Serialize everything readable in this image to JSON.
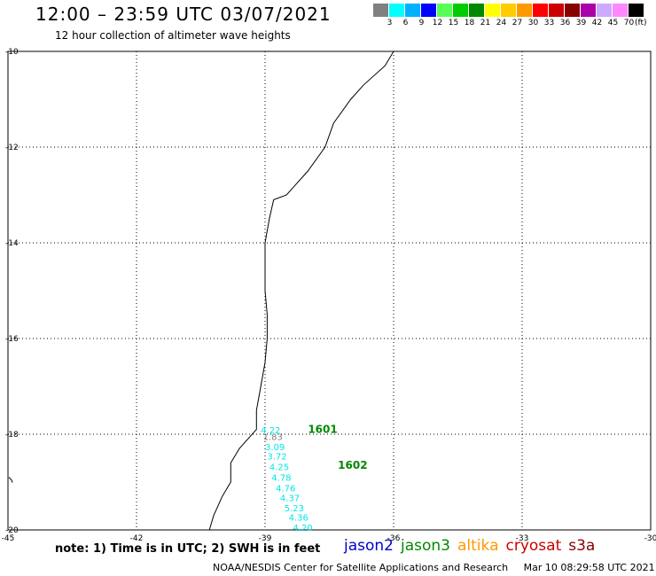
{
  "header": {
    "title": "12:00 – 23:59 UTC 03/07/2021",
    "subtitle": "12 hour collection of altimeter wave heights"
  },
  "color_scale": {
    "colors": [
      "#808080",
      "#00ffff",
      "#00b0ff",
      "#0000ff",
      "#55ff55",
      "#00cc00",
      "#008800",
      "#ffff00",
      "#ffcc00",
      "#ff9900",
      "#ff0000",
      "#cc0000",
      "#880000",
      "#aa00aa",
      "#ccaaff",
      "#ff88ff",
      "#000000"
    ],
    "ticks": [
      "3",
      "6",
      "9",
      "12",
      "15",
      "18",
      "21",
      "24",
      "27",
      "30",
      "33",
      "36",
      "39",
      "42",
      "45",
      "70"
    ],
    "unit": "(ft)"
  },
  "map": {
    "lon_range": [
      -45,
      -30
    ],
    "lat_range": [
      -20,
      -10
    ],
    "lon_labels": [
      "-45",
      "-42",
      "-39",
      "-36",
      "-33",
      "-30"
    ],
    "lat_labels": [
      "-10",
      "-12",
      "-14",
      "-16",
      "-18",
      "-20"
    ],
    "grid": "dotted",
    "coastline": [
      [
        -36.0,
        -10.0
      ],
      [
        -36.2,
        -10.3
      ],
      [
        -36.7,
        -10.7
      ],
      [
        -37.0,
        -11.0
      ],
      [
        -37.4,
        -11.5
      ],
      [
        -37.6,
        -12.0
      ],
      [
        -38.0,
        -12.5
      ],
      [
        -38.3,
        -12.8
      ],
      [
        -38.5,
        -13.0
      ],
      [
        -38.8,
        -13.1
      ],
      [
        -38.9,
        -13.5
      ],
      [
        -39.0,
        -14.0
      ],
      [
        -39.0,
        -14.3
      ],
      [
        -39.0,
        -15.0
      ],
      [
        -38.95,
        -15.5
      ],
      [
        -38.95,
        -16.0
      ],
      [
        -39.0,
        -16.5
      ],
      [
        -39.1,
        -17.0
      ],
      [
        -39.2,
        -17.5
      ],
      [
        -39.2,
        -17.9
      ],
      [
        -39.6,
        -18.3
      ],
      [
        -39.8,
        -18.6
      ],
      [
        -39.8,
        -19.0
      ],
      [
        -40.0,
        -19.3
      ],
      [
        -40.2,
        -19.7
      ],
      [
        -40.3,
        -20.0
      ]
    ],
    "passes": [
      {
        "label": "1601",
        "color": "#008800",
        "lon": -38.0,
        "lat": -17.97
      },
      {
        "label": "1602",
        "color": "#008800",
        "lon": -37.3,
        "lat": -18.72
      }
    ],
    "swh_points": [
      {
        "value": "4.22",
        "color": "#00e6e6",
        "lon": -39.1,
        "lat": -17.98
      },
      {
        "value": "1.83",
        "color": "#808080",
        "lon": -39.05,
        "lat": -18.12
      },
      {
        "value": "3.09",
        "color": "#00e6e6",
        "lon": -39.0,
        "lat": -18.33
      },
      {
        "value": "3.72",
        "color": "#00e6e6",
        "lon": -38.95,
        "lat": -18.53
      },
      {
        "value": "4.25",
        "color": "#00e6e6",
        "lon": -38.9,
        "lat": -18.75
      },
      {
        "value": "4.78",
        "color": "#00e6e6",
        "lon": -38.85,
        "lat": -18.97
      },
      {
        "value": "4.76",
        "color": "#00e6e6",
        "lon": -38.75,
        "lat": -19.19
      },
      {
        "value": "4.37",
        "color": "#00e6e6",
        "lon": -38.65,
        "lat": -19.4
      },
      {
        "value": "5.23",
        "color": "#00e6e6",
        "lon": -38.55,
        "lat": -19.61
      },
      {
        "value": "4.36",
        "color": "#00e6e6",
        "lon": -38.45,
        "lat": -19.81
      },
      {
        "value": "4.20",
        "color": "#00e6e6",
        "lon": -38.35,
        "lat": -20.02
      }
    ]
  },
  "footer": {
    "note": "note: 1) Time is in UTC; 2) SWH is in feet",
    "satellites": [
      {
        "name": "jason2",
        "color": "#0000cc"
      },
      {
        "name": "jason3",
        "color": "#008800"
      },
      {
        "name": "altika",
        "color": "#ff9900"
      },
      {
        "name": "cryosat",
        "color": "#cc0000"
      },
      {
        "name": "s3a",
        "color": "#880000"
      }
    ],
    "credit": "NOAA/NESDIS Center for Satellite Applications and Research",
    "timestamp": "Mar 10 08:29:58 UTC 2021"
  }
}
